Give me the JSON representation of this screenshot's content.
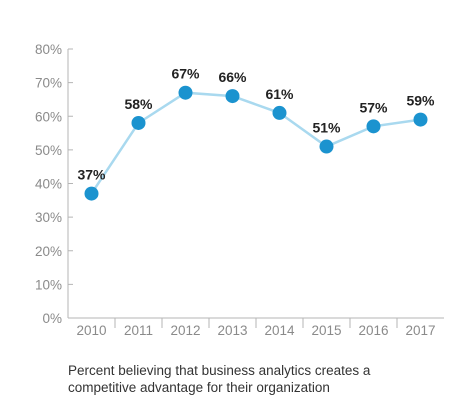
{
  "chart_data": {
    "type": "line",
    "title": "",
    "xlabel": "",
    "ylabel": "",
    "categories": [
      "2010",
      "2011",
      "2012",
      "2013",
      "2014",
      "2015",
      "2016",
      "2017"
    ],
    "series": [
      {
        "values": [
          37,
          58,
          67,
          66,
          61,
          51,
          57,
          59
        ]
      }
    ],
    "data_labels": [
      "37%",
      "58%",
      "67%",
      "66%",
      "61%",
      "51%",
      "57%",
      "59%"
    ],
    "y_ticks": [
      "0%",
      "10%",
      "20%",
      "30%",
      "40%",
      "50%",
      "60%",
      "70%",
      "80%"
    ],
    "ylim": [
      0,
      80
    ],
    "grid": false,
    "legend": "none",
    "colors": {
      "marker": "#1b93cf",
      "line": "#a9d9ef",
      "axis": "#b5b5b5"
    }
  },
  "caption": "Percent believing that business analytics creates a competitive advantage for their organization"
}
